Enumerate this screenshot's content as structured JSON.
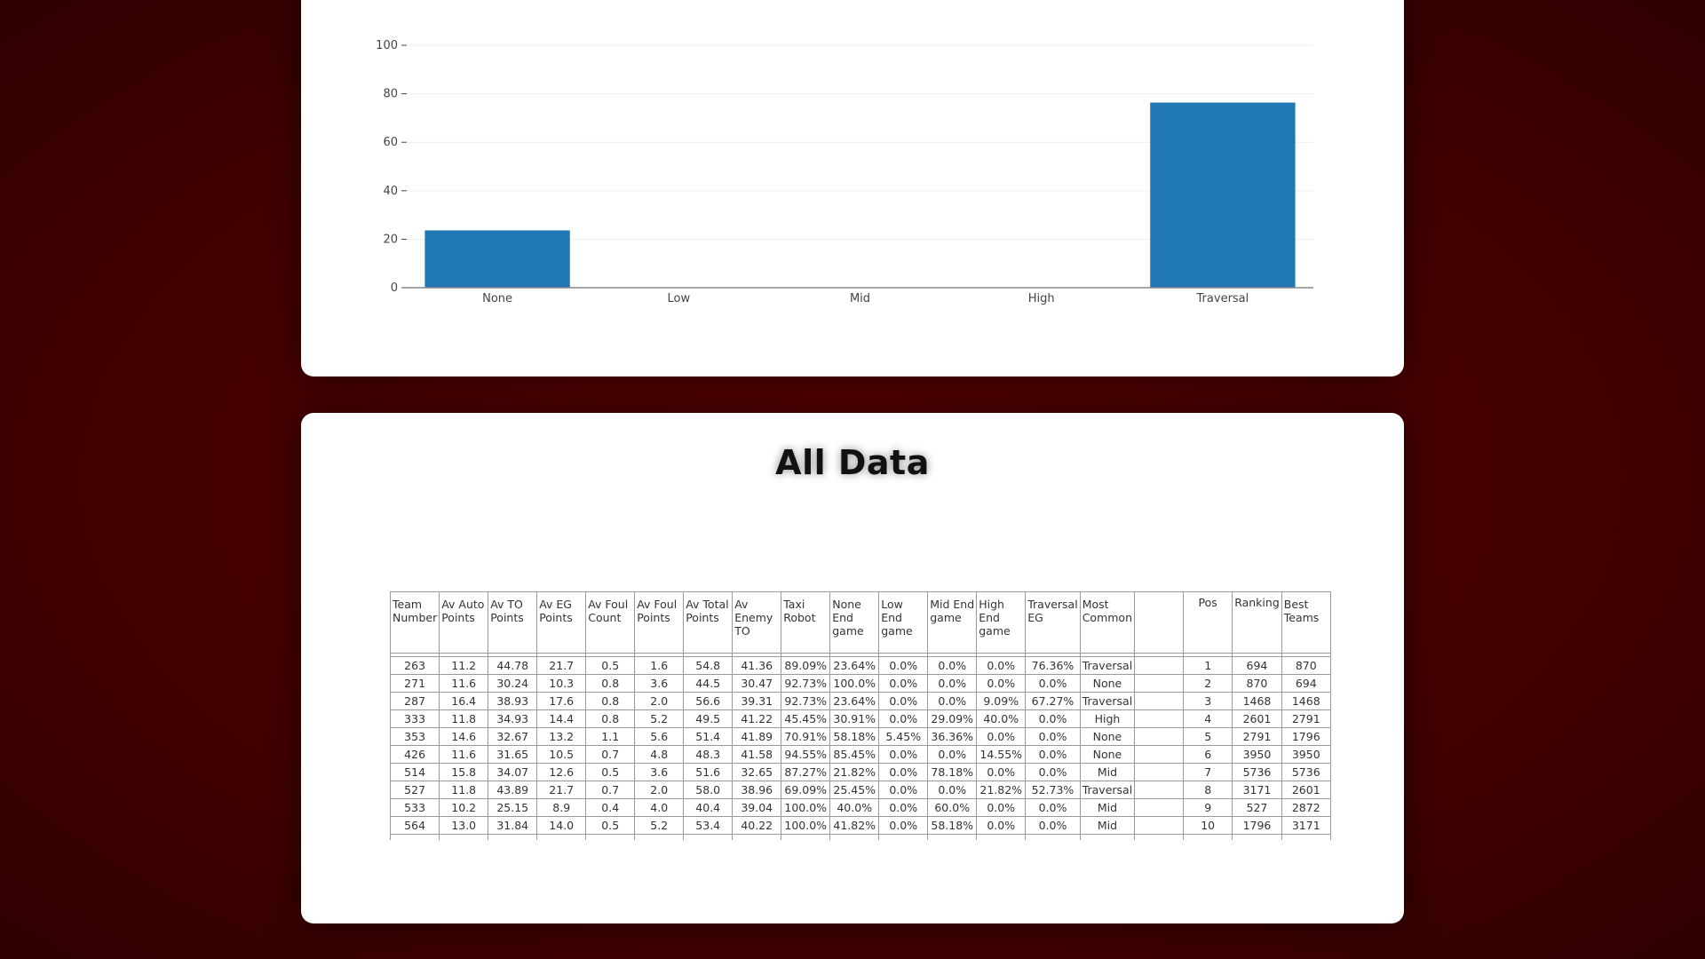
{
  "chart_data": {
    "type": "bar",
    "categories": [
      "None",
      "Low",
      "Mid",
      "High",
      "Traversal"
    ],
    "values": [
      23.64,
      0,
      0,
      0,
      76.36
    ],
    "ylim": [
      0,
      100
    ],
    "yticks": [
      0,
      20,
      40,
      60,
      80,
      100
    ],
    "color": "#1f77b4",
    "grid": true
  },
  "all_data": {
    "title": "All Data",
    "headers": [
      "Team Number",
      "Av Auto Points",
      "Av TO Points",
      "Av EG Points",
      "Av Foul Count",
      "Av Foul Points",
      "Av Total Points",
      "Av Enemy TO",
      "Taxi Robot",
      "None End game",
      "Low End game",
      "Mid End game",
      "High End game",
      "Traversal EG",
      "Most Common",
      "",
      "Pos",
      "Ranking",
      "Best Teams"
    ],
    "rows": [
      [
        "263",
        "11.2",
        "44.78",
        "21.7",
        "0.5",
        "1.6",
        "54.8",
        "41.36",
        "89.09%",
        "23.64%",
        "0.0%",
        "0.0%",
        "0.0%",
        "76.36%",
        "Traversal",
        "",
        "1",
        "694",
        "870"
      ],
      [
        "271",
        "11.6",
        "30.24",
        "10.3",
        "0.8",
        "3.6",
        "44.5",
        "30.47",
        "92.73%",
        "100.0%",
        "0.0%",
        "0.0%",
        "0.0%",
        "0.0%",
        "None",
        "",
        "2",
        "870",
        "694"
      ],
      [
        "287",
        "16.4",
        "38.93",
        "17.6",
        "0.8",
        "2.0",
        "56.6",
        "39.31",
        "92.73%",
        "23.64%",
        "0.0%",
        "0.0%",
        "9.09%",
        "67.27%",
        "Traversal",
        "",
        "3",
        "1468",
        "1468"
      ],
      [
        "333",
        "11.8",
        "34.93",
        "14.4",
        "0.8",
        "5.2",
        "49.5",
        "41.22",
        "45.45%",
        "30.91%",
        "0.0%",
        "29.09%",
        "40.0%",
        "0.0%",
        "High",
        "",
        "4",
        "2601",
        "2791"
      ],
      [
        "353",
        "14.6",
        "32.67",
        "13.2",
        "1.1",
        "5.6",
        "51.4",
        "41.89",
        "70.91%",
        "58.18%",
        "5.45%",
        "36.36%",
        "0.0%",
        "0.0%",
        "None",
        "",
        "5",
        "2791",
        "1796"
      ],
      [
        "426",
        "11.6",
        "31.65",
        "10.5",
        "0.7",
        "4.8",
        "48.3",
        "41.58",
        "94.55%",
        "85.45%",
        "0.0%",
        "0.0%",
        "14.55%",
        "0.0%",
        "None",
        "",
        "6",
        "3950",
        "3950"
      ],
      [
        "514",
        "15.8",
        "34.07",
        "12.6",
        "0.5",
        "3.6",
        "51.6",
        "32.65",
        "87.27%",
        "21.82%",
        "0.0%",
        "78.18%",
        "0.0%",
        "0.0%",
        "Mid",
        "",
        "7",
        "5736",
        "5736"
      ],
      [
        "527",
        "11.8",
        "43.89",
        "21.7",
        "0.7",
        "2.0",
        "58.0",
        "38.96",
        "69.09%",
        "25.45%",
        "0.0%",
        "0.0%",
        "21.82%",
        "52.73%",
        "Traversal",
        "",
        "8",
        "3171",
        "2601"
      ],
      [
        "533",
        "10.2",
        "25.15",
        "8.9",
        "0.4",
        "4.0",
        "40.4",
        "39.04",
        "100.0%",
        "40.0%",
        "0.0%",
        "60.0%",
        "0.0%",
        "0.0%",
        "Mid",
        "",
        "9",
        "527",
        "2872"
      ],
      [
        "564",
        "13.0",
        "31.84",
        "14.0",
        "0.5",
        "5.2",
        "53.4",
        "40.22",
        "100.0%",
        "41.82%",
        "0.0%",
        "58.18%",
        "0.0%",
        "0.0%",
        "Mid",
        "",
        "10",
        "1796",
        "3171"
      ]
    ]
  }
}
